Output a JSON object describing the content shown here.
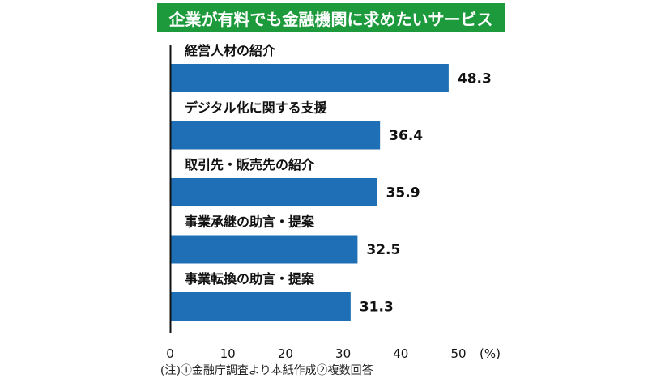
{
  "chart_data": {
    "type": "bar",
    "orientation": "horizontal",
    "title": "企業が有料でも金融機関に求めたいサービス",
    "categories": [
      "経営人材の紹介",
      "デジタル化に関する支援",
      "取引先・販売先の紹介",
      "事業承継の助言・提案",
      "事業転換の助言・提案"
    ],
    "values": [
      48.3,
      36.4,
      35.9,
      32.5,
      31.3
    ],
    "value_labels": [
      "48.3",
      "36.4",
      "35.9",
      "32.5",
      "31.3"
    ],
    "xlim": [
      0,
      50
    ],
    "xticks": [
      "0",
      "10",
      "20",
      "30",
      "40",
      "50"
    ],
    "unit": "(%)",
    "bar_color": "#1e6fb5",
    "title_bg_color": "#1d9a3c",
    "grid": false
  },
  "note": "(注)①金融庁調査より本紙作成②複数回答"
}
